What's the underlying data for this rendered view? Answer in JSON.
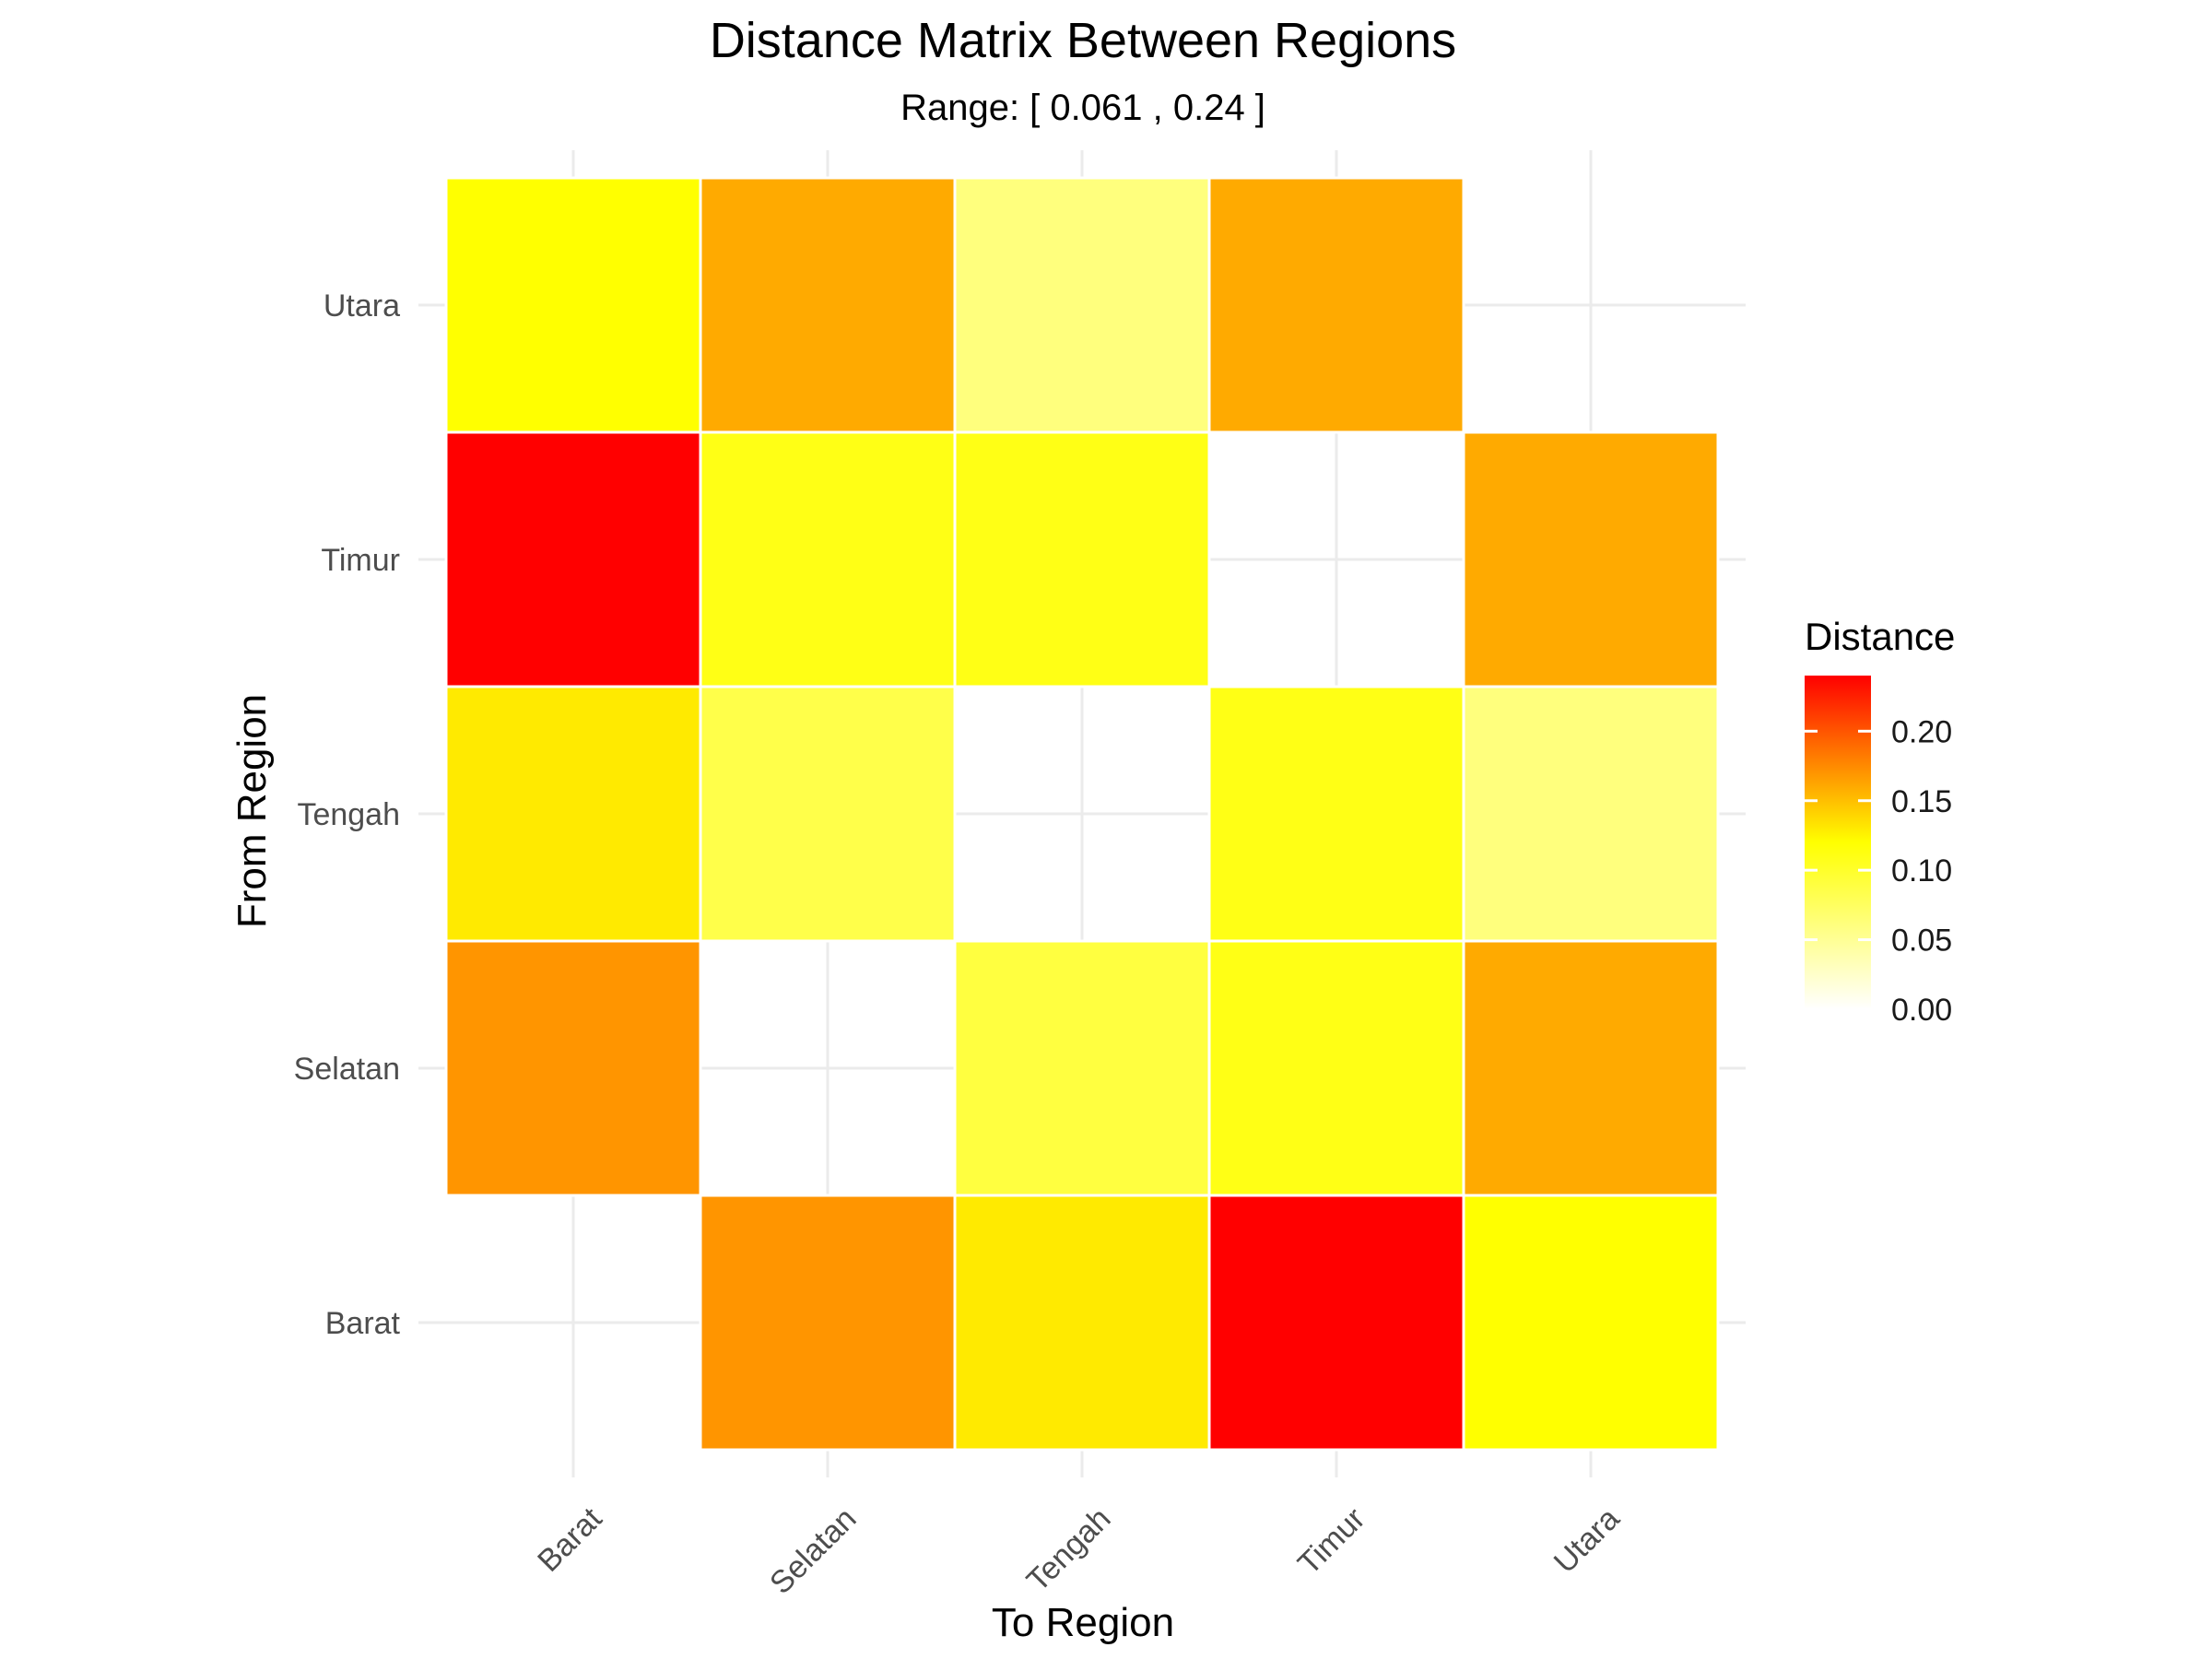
{
  "chart_data": {
    "type": "heatmap",
    "title": "Distance Matrix Between Regions",
    "subtitle": "Range: [ 0.061 , 0.24 ]",
    "xlabel": "To Region",
    "ylabel": "From Region",
    "x_categories": [
      "Barat",
      "Selatan",
      "Tengah",
      "Timur",
      "Utara"
    ],
    "y_categories": [
      "Barat",
      "Selatan",
      "Tengah",
      "Timur",
      "Utara"
    ],
    "cells": [
      {
        "from": "Barat",
        "to": "Selatan",
        "value": 0.17
      },
      {
        "from": "Barat",
        "to": "Tengah",
        "value": 0.13
      },
      {
        "from": "Barat",
        "to": "Timur",
        "value": 0.24
      },
      {
        "from": "Barat",
        "to": "Utara",
        "value": 0.12
      },
      {
        "from": "Selatan",
        "to": "Barat",
        "value": 0.17
      },
      {
        "from": "Selatan",
        "to": "Tengah",
        "value": 0.09
      },
      {
        "from": "Selatan",
        "to": "Timur",
        "value": 0.11
      },
      {
        "from": "Selatan",
        "to": "Utara",
        "value": 0.16
      },
      {
        "from": "Tengah",
        "to": "Barat",
        "value": 0.13
      },
      {
        "from": "Tengah",
        "to": "Selatan",
        "value": 0.085
      },
      {
        "from": "Tengah",
        "to": "Timur",
        "value": 0.11
      },
      {
        "from": "Tengah",
        "to": "Utara",
        "value": 0.061
      },
      {
        "from": "Timur",
        "to": "Barat",
        "value": 0.24
      },
      {
        "from": "Timur",
        "to": "Selatan",
        "value": 0.11
      },
      {
        "from": "Timur",
        "to": "Tengah",
        "value": 0.11
      },
      {
        "from": "Timur",
        "to": "Utara",
        "value": 0.16
      },
      {
        "from": "Utara",
        "to": "Barat",
        "value": 0.12
      },
      {
        "from": "Utara",
        "to": "Selatan",
        "value": 0.16
      },
      {
        "from": "Utara",
        "to": "Tengah",
        "value": 0.061
      },
      {
        "from": "Utara",
        "to": "Timur",
        "value": 0.16
      }
    ],
    "legend": {
      "title": "Distance",
      "placement": "right",
      "range": [
        0,
        0.24
      ],
      "ticks": [
        0.0,
        0.05,
        0.1,
        0.15,
        0.2
      ],
      "tick_labels": [
        "0.00",
        "0.05",
        "0.10",
        "0.15",
        "0.20"
      ],
      "colors": [
        "#ffffff",
        "#ffff00",
        "#ff0000"
      ]
    },
    "grid": true
  }
}
